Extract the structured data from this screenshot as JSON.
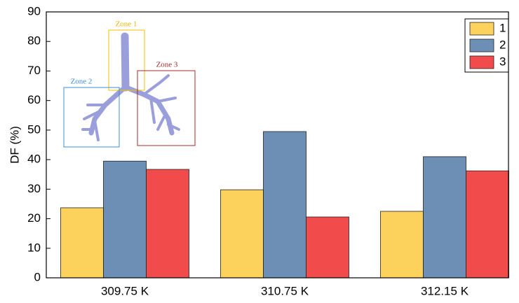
{
  "chart_data": {
    "type": "bar",
    "categories": [
      "309.75 K",
      "310.75 K",
      "312.15 K"
    ],
    "y_label": "DF (%)",
    "ylim": [
      0,
      90
    ],
    "yticks": [
      0,
      10,
      20,
      30,
      40,
      50,
      60,
      70,
      80,
      90
    ],
    "grid": false,
    "legend": "upper right",
    "series": [
      {
        "name": "1",
        "color": "#fdd25c",
        "values": [
          23.7,
          29.8,
          22.5
        ]
      },
      {
        "name": "2",
        "color": "#6e8fb5",
        "values": [
          39.5,
          49.5,
          41.0
        ]
      },
      {
        "name": "3",
        "color": "#f24b4b",
        "values": [
          36.7,
          20.6,
          36.2
        ]
      }
    ],
    "annotations": [
      "Zone 1",
      "Zone 2",
      "Zone 3"
    ]
  }
}
